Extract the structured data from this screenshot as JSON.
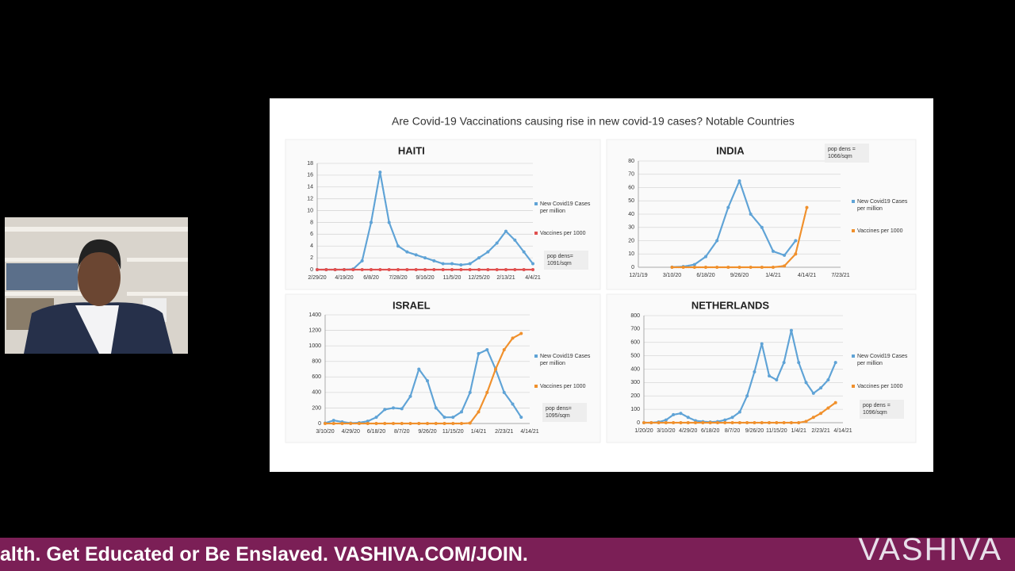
{
  "slide_title": "Are Covid-19 Vaccinations causing rise in new covid-19 cases? Notable Countries",
  "banner": {
    "text": "alth. Get Educated or Be Enslaved. VASHIVA.COM/JOIN.",
    "logo": "VASHIVA"
  },
  "chart_data": [
    {
      "type": "line",
      "title": "HAITI",
      "note": "pop dens= 1091/sqm",
      "legend": "right",
      "grid": true,
      "categories": [
        "2/29/20",
        null,
        null,
        "4/19/20",
        null,
        null,
        "6/8/20",
        null,
        null,
        "7/28/20",
        null,
        null,
        "9/16/20",
        null,
        null,
        "11/5/20",
        null,
        null,
        "12/25/20",
        null,
        null,
        "2/13/21",
        null,
        null,
        "4/4/21"
      ],
      "ylim": [
        0,
        18
      ],
      "yticks": [
        0,
        2,
        4,
        6,
        8,
        10,
        12,
        14,
        16,
        18
      ],
      "series": [
        {
          "name": "New Covid19 Cases per million",
          "color": "#5fa3d6",
          "values": [
            0,
            0,
            0,
            0,
            0.1,
            1.5,
            8,
            16.5,
            8,
            4,
            3,
            2.5,
            2,
            1.5,
            1,
            1,
            0.8,
            1,
            2,
            3,
            4.5,
            6.5,
            5,
            3,
            1
          ]
        },
        {
          "name": "Vaccines per 1000",
          "color": "#e0504f",
          "values": [
            0,
            0,
            0,
            0,
            0,
            0,
            0,
            0,
            0,
            0,
            0,
            0,
            0,
            0,
            0,
            0,
            0,
            0,
            0,
            0,
            0,
            0,
            0,
            0,
            0
          ]
        }
      ]
    },
    {
      "type": "line",
      "title": "INDIA",
      "note": "pop dens = 1066/sqm",
      "legend": "right",
      "grid": true,
      "categories": [
        "12/1/19",
        null,
        null,
        "3/10/20",
        null,
        null,
        "6/18/20",
        null,
        null,
        "9/26/20",
        null,
        null,
        "1/4/21",
        null,
        null,
        "4/14/21",
        null,
        null,
        "7/23/21"
      ],
      "ylim": [
        0,
        80
      ],
      "yticks": [
        0,
        10,
        20,
        30,
        40,
        50,
        60,
        70,
        80
      ],
      "series": [
        {
          "name": "New Covid19 Cases per million",
          "color": "#5fa3d6",
          "values": [
            null,
            null,
            null,
            0.1,
            0.5,
            2,
            8,
            20,
            45,
            65,
            40,
            30,
            12,
            9,
            20,
            null,
            null,
            null,
            null
          ]
        },
        {
          "name": "Vaccines per 1000",
          "color": "#f0902c",
          "values": [
            null,
            null,
            null,
            0,
            0,
            0,
            0,
            0,
            0,
            0,
            0,
            0,
            0,
            1,
            10,
            45,
            null,
            null,
            null
          ]
        }
      ]
    },
    {
      "type": "line",
      "title": "ISRAEL",
      "note": "pop dens= 1095/sqm",
      "legend": "right",
      "grid": true,
      "categories": [
        "3/10/20",
        null,
        null,
        "4/29/20",
        null,
        null,
        "6/18/20",
        null,
        null,
        "8/7/20",
        null,
        null,
        "9/26/20",
        null,
        null,
        "11/15/20",
        null,
        null,
        "1/4/21",
        null,
        null,
        "2/23/21",
        null,
        null,
        "4/14/21"
      ],
      "ylim": [
        0,
        1400
      ],
      "yticks": [
        0,
        200,
        400,
        600,
        800,
        1000,
        1200,
        1400
      ],
      "series": [
        {
          "name": "New Covid19 Cases per million",
          "color": "#5fa3d6",
          "values": [
            5,
            40,
            20,
            5,
            10,
            30,
            80,
            180,
            200,
            190,
            350,
            700,
            550,
            200,
            80,
            80,
            150,
            400,
            900,
            950,
            700,
            400,
            250,
            80,
            null
          ]
        },
        {
          "name": "Vaccines per 1000",
          "color": "#f0902c",
          "values": [
            0,
            0,
            0,
            0,
            0,
            0,
            0,
            0,
            0,
            0,
            0,
            0,
            0,
            0,
            0,
            0,
            0,
            5,
            150,
            400,
            700,
            950,
            1100,
            1160,
            null
          ]
        }
      ]
    },
    {
      "type": "line",
      "title": "NETHERLANDS",
      "note": "pop dens = 1096/sqm",
      "legend": "right",
      "grid": true,
      "categories": [
        "1/20/20",
        null,
        null,
        "3/10/20",
        null,
        null,
        "4/29/20",
        null,
        null,
        "6/18/20",
        null,
        null,
        "8/7/20",
        null,
        null,
        "9/26/20",
        null,
        null,
        "11/15/20",
        null,
        null,
        "1/4/21",
        null,
        null,
        "2/23/21",
        null,
        null,
        "4/14/21"
      ],
      "ylim": [
        0,
        800
      ],
      "yticks": [
        0,
        100,
        200,
        300,
        400,
        500,
        600,
        700,
        800
      ],
      "series": [
        {
          "name": "New Covid19 Cases per million",
          "color": "#5fa3d6",
          "values": [
            0,
            0,
            5,
            20,
            60,
            70,
            40,
            15,
            8,
            5,
            8,
            20,
            40,
            80,
            200,
            380,
            590,
            350,
            320,
            450,
            690,
            450,
            300,
            220,
            260,
            320,
            450,
            null
          ]
        },
        {
          "name": "Vaccines per 1000",
          "color": "#f0902c",
          "values": [
            0,
            0,
            0,
            0,
            0,
            0,
            0,
            0,
            0,
            0,
            0,
            0,
            0,
            0,
            0,
            0,
            0,
            0,
            0,
            0,
            0,
            0,
            10,
            40,
            70,
            110,
            150,
            null
          ]
        }
      ]
    }
  ]
}
